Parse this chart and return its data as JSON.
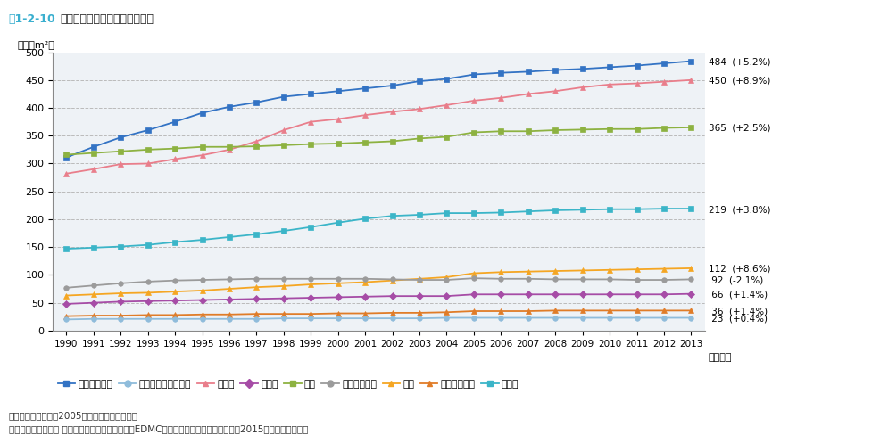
{
  "title_prefix": "図1-2-10",
  "title_main": "　業務床面積（業種別）の推移",
  "ylabel": "（百万m²）",
  "xlabel": "（年度）",
  "years": [
    1990,
    1991,
    1992,
    1993,
    1994,
    1995,
    1996,
    1997,
    1998,
    1999,
    2000,
    2001,
    2002,
    2003,
    2004,
    2005,
    2006,
    2007,
    2008,
    2009,
    2010,
    2011,
    2012,
    2013
  ],
  "series": [
    {
      "name": "事務所・ビル",
      "color": "#3373C4",
      "marker": "s",
      "data": [
        311,
        330,
        347,
        360,
        375,
        391,
        402,
        410,
        420,
        425,
        430,
        435,
        440,
        448,
        452,
        460,
        463,
        465,
        468,
        470,
        473,
        476,
        480,
        484
      ]
    },
    {
      "name": "卸小売",
      "color": "#E97E8B",
      "marker": "^",
      "data": [
        282,
        290,
        299,
        300,
        308,
        315,
        325,
        340,
        360,
        375,
        380,
        387,
        393,
        398,
        405,
        413,
        418,
        425,
        430,
        437,
        442,
        444,
        447,
        450
      ]
    },
    {
      "name": "学校",
      "color": "#8DB241",
      "marker": "s",
      "data": [
        316,
        319,
        322,
        325,
        327,
        330,
        330,
        331,
        333,
        335,
        336,
        338,
        340,
        345,
        348,
        356,
        358,
        358,
        360,
        361,
        362,
        362,
        364,
        365
      ]
    },
    {
      "name": "その他",
      "color": "#3BB5C8",
      "marker": "s",
      "data": [
        147,
        149,
        151,
        154,
        159,
        163,
        168,
        173,
        179,
        186,
        194,
        201,
        206,
        208,
        211,
        211,
        212,
        214,
        216,
        217,
        218,
        218,
        219,
        219
      ]
    },
    {
      "name": "病院",
      "color": "#F5A623",
      "marker": "^",
      "data": [
        63,
        65,
        67,
        68,
        70,
        72,
        75,
        78,
        80,
        83,
        85,
        87,
        90,
        93,
        96,
        103,
        105,
        106,
        107,
        108,
        109,
        110,
        111,
        112
      ]
    },
    {
      "name": "ホテル・旅館",
      "color": "#9B9B9B",
      "marker": "o",
      "data": [
        77,
        81,
        85,
        88,
        90,
        91,
        92,
        93,
        93,
        93,
        93,
        93,
        92,
        91,
        91,
        94,
        93,
        93,
        92,
        92,
        92,
        91,
        91,
        92
      ]
    },
    {
      "name": "飲食店",
      "color": "#A64CA6",
      "marker": "D",
      "data": [
        48,
        50,
        52,
        53,
        54,
        55,
        56,
        57,
        58,
        59,
        60,
        61,
        62,
        62,
        62,
        65,
        65,
        65,
        65,
        65,
        65,
        65,
        65,
        66
      ]
    },
    {
      "name": "劇場・娯楽場",
      "color": "#E07C28",
      "marker": "^",
      "data": [
        26,
        27,
        27,
        28,
        28,
        29,
        29,
        30,
        30,
        30,
        31,
        31,
        32,
        32,
        33,
        35,
        35,
        35,
        36,
        36,
        36,
        36,
        36,
        36
      ]
    },
    {
      "name": "デパート・スーパー",
      "color": "#8FBCDB",
      "marker": "o",
      "data": [
        20,
        21,
        21,
        21,
        21,
        21,
        21,
        21,
        22,
        22,
        22,
        22,
        22,
        22,
        23,
        23,
        23,
        23,
        23,
        23,
        23,
        23,
        23,
        23
      ]
    }
  ],
  "right_labels": [
    {
      "value": 484,
      "text": "484  (+5.2%)"
    },
    {
      "value": 450,
      "text": "450  (+8.9%)"
    },
    {
      "value": 365,
      "text": "365  (+2.5%)"
    },
    {
      "value": 219,
      "text": "219  (+3.8%)"
    },
    {
      "value": 112,
      "text": "112  (+8.6%)"
    },
    {
      "value": 92,
      "text": " 92  (-2.1%)"
    },
    {
      "value": 66,
      "text": " 66  (+1.4%)"
    },
    {
      "value": 36,
      "text": " 36  (+1.4%)"
    },
    {
      "value": 23,
      "text": " 23  (+0.4%)"
    }
  ],
  "ylim": [
    0,
    500
  ],
  "yticks": [
    0,
    50,
    100,
    150,
    200,
    250,
    300,
    350,
    400,
    450,
    500
  ],
  "note1": "注：括弧内の数値は2005年比の増減率を示す。",
  "note2": "資料：一般財団法人 日本エネルギー経済研究所「EDMC／エネルギー・経済統計要覧（2015年版）」より作成",
  "background_color": "#FFFFFF",
  "plot_bg_color": "#EEF2F6",
  "title_prefix_color": "#3AAFCF",
  "legend_order": [
    0,
    8,
    1,
    6,
    2,
    5,
    4,
    7,
    3
  ]
}
